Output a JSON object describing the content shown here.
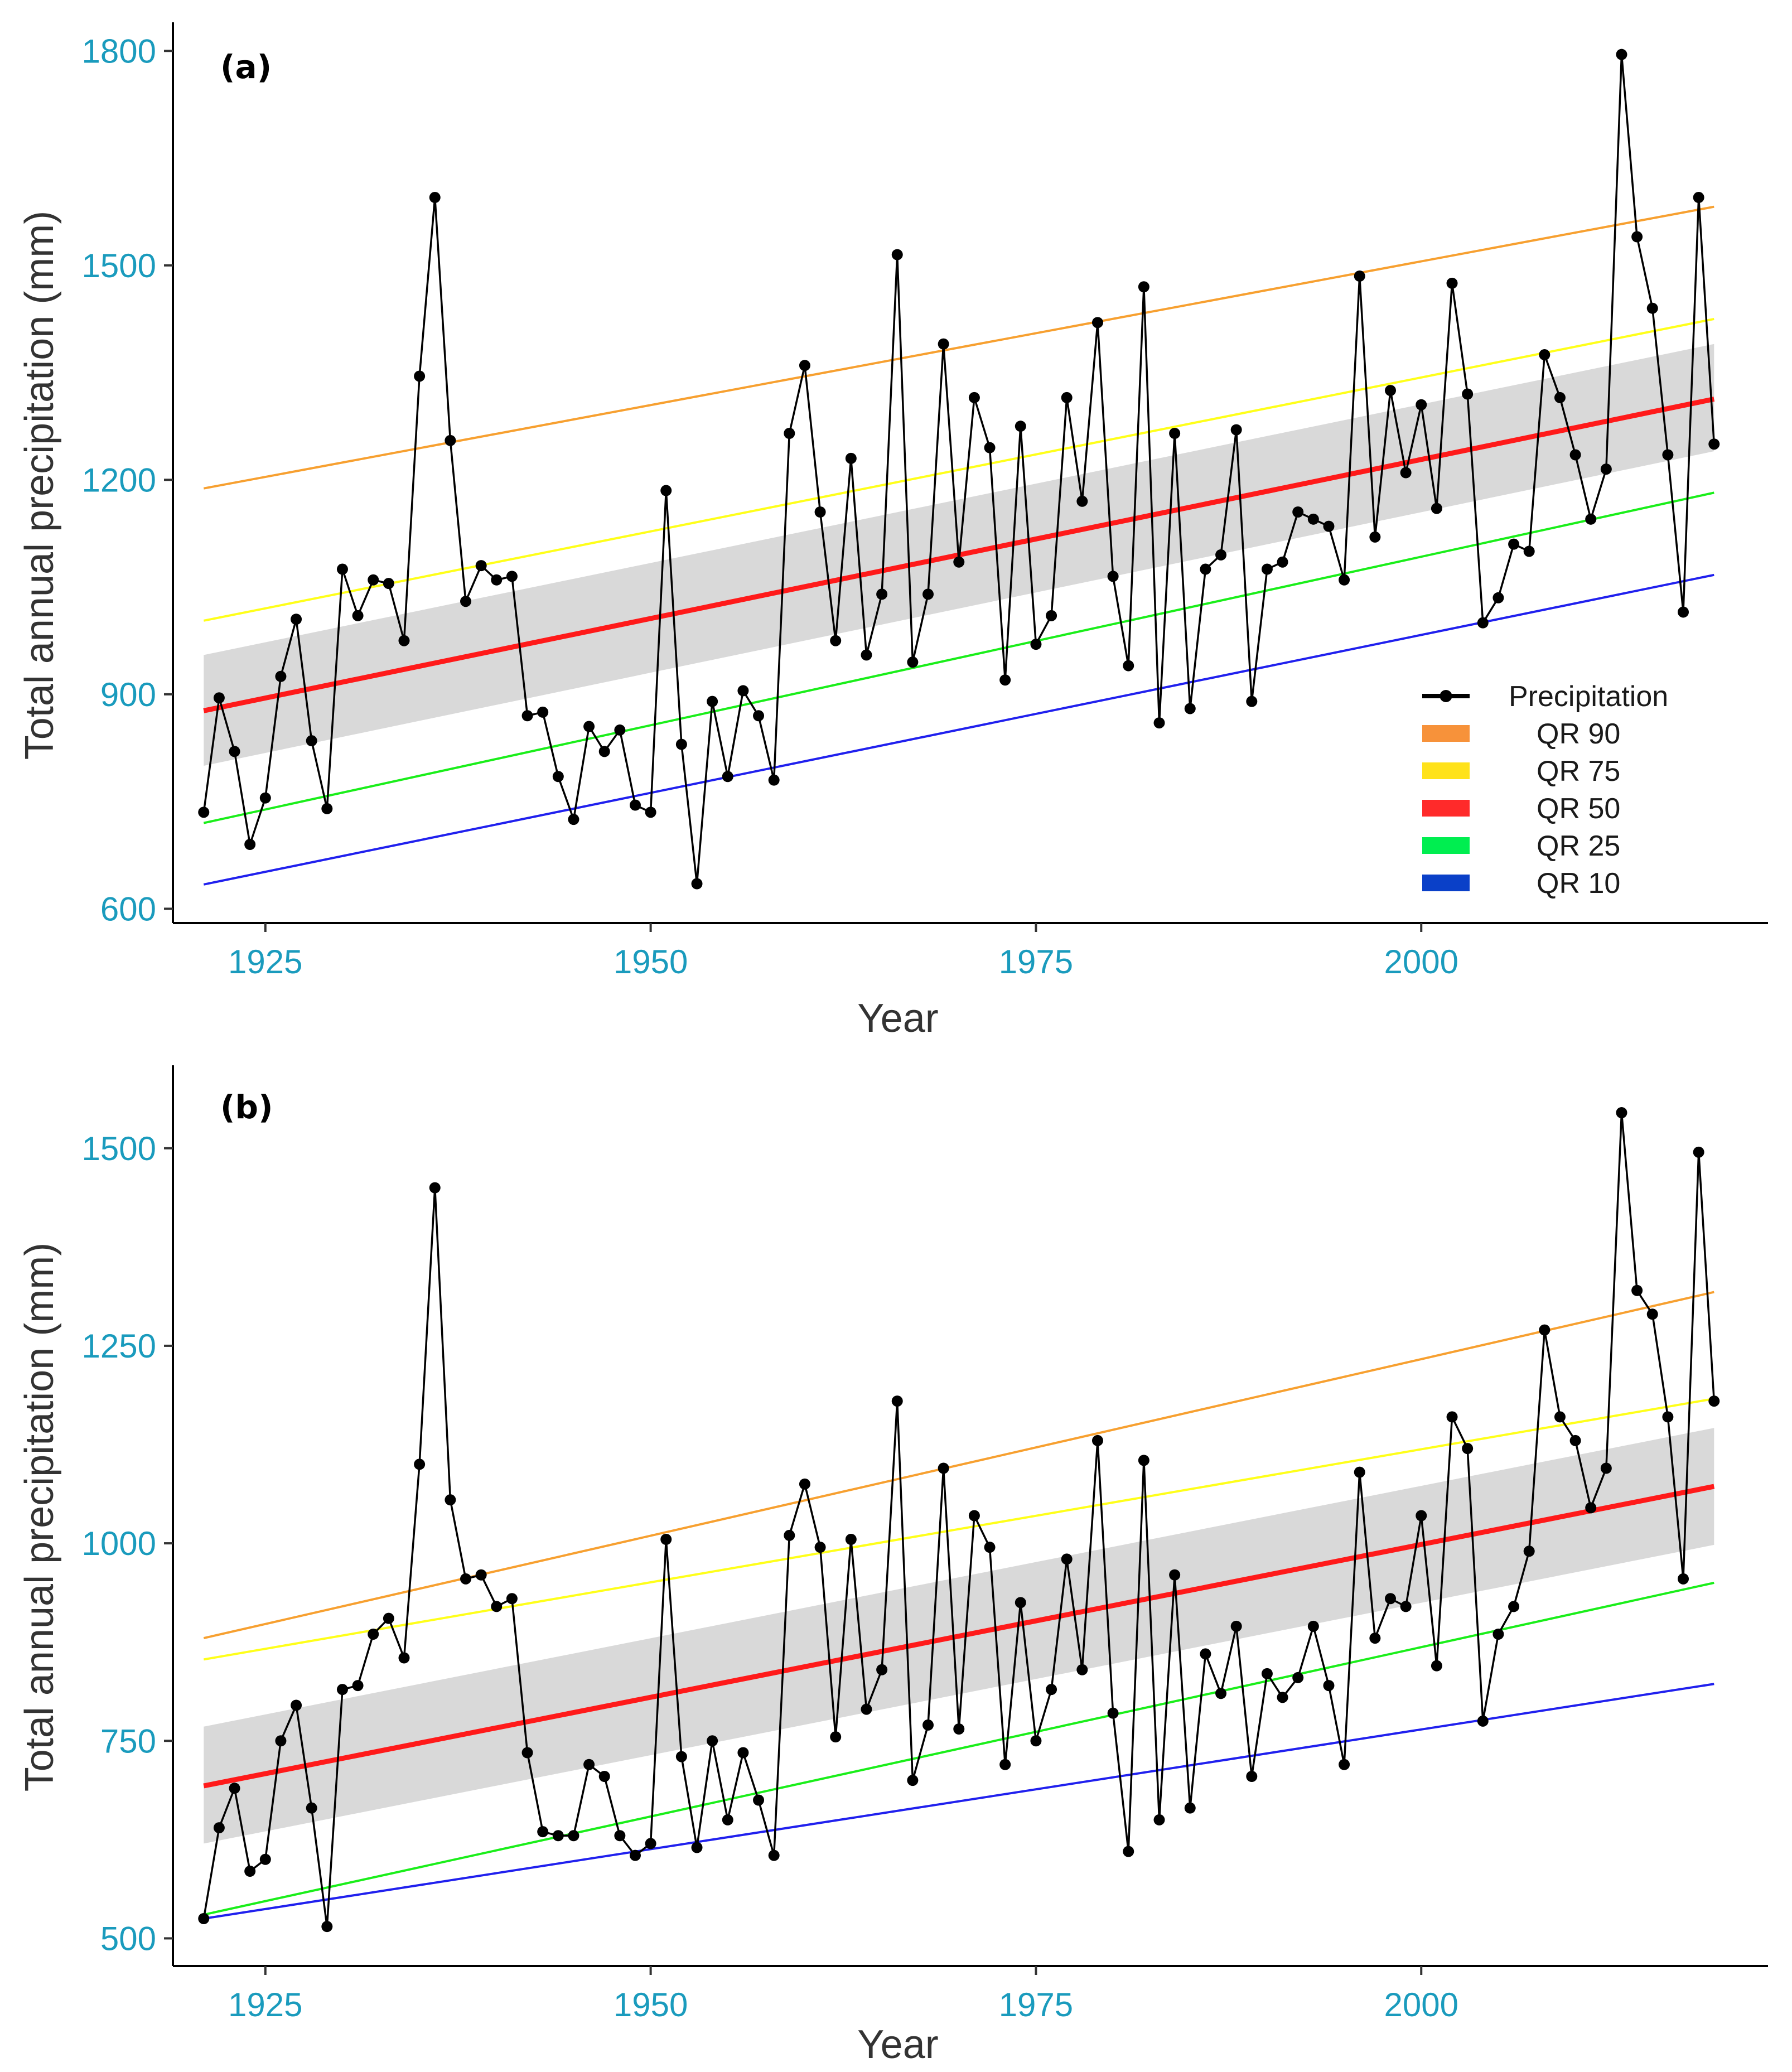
{
  "chart_data": [
    {
      "type": "line",
      "panel_label": "(a)",
      "xlabel": "Year",
      "ylabel": "Total annual precipitation (mm)",
      "xlim": [
        1919,
        2022.5
      ],
      "ylim": [
        580,
        1840
      ],
      "xticks": [
        "1925",
        "1950",
        "1975",
        "2000"
      ],
      "yticks": [
        "600",
        "900",
        "1200",
        "1500",
        "1800"
      ],
      "x": [
        1921,
        1922,
        1923,
        1924,
        1925,
        1926,
        1927,
        1928,
        1929,
        1930,
        1931,
        1932,
        1933,
        1934,
        1935,
        1936,
        1937,
        1938,
        1939,
        1940,
        1941,
        1942,
        1943,
        1944,
        1945,
        1946,
        1947,
        1948,
        1949,
        1950,
        1951,
        1952,
        1953,
        1954,
        1955,
        1956,
        1957,
        1958,
        1959,
        1960,
        1961,
        1962,
        1963,
        1964,
        1965,
        1966,
        1967,
        1968,
        1969,
        1970,
        1971,
        1972,
        1973,
        1974,
        1975,
        1976,
        1977,
        1978,
        1979,
        1980,
        1981,
        1982,
        1983,
        1984,
        1985,
        1986,
        1987,
        1988,
        1989,
        1990,
        1991,
        1992,
        1993,
        1994,
        1995,
        1996,
        1997,
        1998,
        1999,
        2000,
        2001,
        2002,
        2003,
        2004,
        2005,
        2006,
        2007,
        2008,
        2009,
        2010,
        2011,
        2012,
        2013,
        2014,
        2015,
        2016,
        2017,
        2018,
        2019
      ],
      "precipitation": [
        735,
        895,
        820,
        690,
        755,
        925,
        1005,
        835,
        740,
        1075,
        1010,
        1060,
        1055,
        975,
        1345,
        1595,
        1255,
        1030,
        1080,
        1060,
        1065,
        870,
        875,
        785,
        725,
        855,
        820,
        850,
        745,
        735,
        1185,
        830,
        635,
        890,
        785,
        905,
        870,
        780,
        1265,
        1360,
        1155,
        975,
        1230,
        955,
        1040,
        1515,
        945,
        1040,
        1390,
        1085,
        1315,
        1245,
        920,
        1275,
        970,
        1010,
        1315,
        1170,
        1420,
        1065,
        940,
        1470,
        860,
        1265,
        880,
        1075,
        1095,
        1270,
        890,
        1075,
        1085,
        1155,
        1145,
        1135,
        1060,
        1485,
        1120,
        1325,
        1210,
        1305,
        1160,
        1475,
        1320,
        1000,
        1035,
        1110,
        1100,
        1375,
        1315,
        1235,
        1145,
        1215,
        1795,
        1540,
        1440,
        1235,
        1015,
        1595,
        1250
      ],
      "qr_lines": [
        {
          "name": "QR 90",
          "color": "#f7a030",
          "start": [
            1921,
            1188
          ],
          "end": [
            2019,
            1582
          ]
        },
        {
          "name": "QR 75",
          "color": "#ffff1a",
          "start": [
            1921,
            1003
          ],
          "end": [
            2019,
            1425
          ]
        },
        {
          "name": "QR 50",
          "color": "#ff1a1a",
          "start": [
            1921,
            877
          ],
          "end": [
            2019,
            1313
          ]
        },
        {
          "name": "QR 25",
          "color": "#1aee1a",
          "start": [
            1921,
            720
          ],
          "end": [
            2019,
            1182
          ]
        },
        {
          "name": "QR 10",
          "color": "#2020ee",
          "start": [
            1921,
            634
          ],
          "end": [
            2019,
            1067
          ]
        }
      ],
      "confidence_band": {
        "start": [
          1921,
          800,
          955
        ],
        "end": [
          2019,
          1240,
          1390
        ],
        "color": "#d9d9d9"
      },
      "legend": [
        {
          "label": "Precipitation",
          "color": "#000000"
        },
        {
          "label": "QR 90",
          "color": "#f7923a"
        },
        {
          "label": "QR 75",
          "color": "#ffe21a"
        },
        {
          "label": "QR 50",
          "color": "#ff2a2a"
        },
        {
          "label": "QR 25",
          "color": "#00ee50"
        },
        {
          "label": "QR 10",
          "color": "#0a40c8"
        }
      ]
    },
    {
      "type": "line",
      "panel_label": "(b)",
      "xlabel": "Year",
      "ylabel": "Total annual precipitation (mm)",
      "xlim": [
        1919,
        2022.5
      ],
      "ylim": [
        465,
        1605
      ],
      "xticks": [
        "1925",
        "1950",
        "1975",
        "2000"
      ],
      "yticks": [
        "500",
        "750",
        "1000",
        "1250",
        "1500"
      ],
      "x": [
        1921,
        1922,
        1923,
        1924,
        1925,
        1926,
        1927,
        1928,
        1929,
        1930,
        1931,
        1932,
        1933,
        1934,
        1935,
        1936,
        1937,
        1938,
        1939,
        1940,
        1941,
        1942,
        1943,
        1944,
        1945,
        1946,
        1947,
        1948,
        1949,
        1950,
        1951,
        1952,
        1953,
        1954,
        1955,
        1956,
        1957,
        1958,
        1959,
        1960,
        1961,
        1962,
        1963,
        1964,
        1965,
        1966,
        1967,
        1968,
        1969,
        1970,
        1971,
        1972,
        1973,
        1974,
        1975,
        1976,
        1977,
        1978,
        1979,
        1980,
        1981,
        1982,
        1983,
        1984,
        1985,
        1986,
        1987,
        1988,
        1989,
        1990,
        1991,
        1992,
        1993,
        1994,
        1995,
        1996,
        1997,
        1998,
        1999,
        2000,
        2001,
        2002,
        2003,
        2004,
        2005,
        2006,
        2007,
        2008,
        2009,
        2010,
        2011,
        2012,
        2013,
        2014,
        2015,
        2016,
        2017,
        2018,
        2019
      ],
      "precipitation": [
        525,
        640,
        690,
        585,
        600,
        750,
        795,
        665,
        515,
        815,
        820,
        885,
        905,
        855,
        1100,
        1450,
        1055,
        955,
        960,
        920,
        930,
        735,
        635,
        630,
        630,
        720,
        705,
        630,
        605,
        620,
        1005,
        730,
        615,
        750,
        650,
        735,
        675,
        605,
        1010,
        1075,
        995,
        755,
        1005,
        790,
        840,
        1180,
        700,
        770,
        1095,
        765,
        1035,
        995,
        720,
        925,
        750,
        815,
        980,
        840,
        1130,
        785,
        610,
        1105,
        650,
        960,
        665,
        860,
        810,
        895,
        705,
        835,
        805,
        830,
        895,
        820,
        720,
        1090,
        880,
        930,
        920,
        1035,
        845,
        1160,
        1120,
        775,
        885,
        920,
        990,
        1270,
        1160,
        1130,
        1045,
        1095,
        1545,
        1320,
        1290,
        1160,
        955,
        1495,
        1180
      ],
      "qr_lines": [
        {
          "name": "QR 90",
          "color": "#f7a030",
          "start": [
            1921,
            880
          ],
          "end": [
            2019,
            1318
          ]
        },
        {
          "name": "QR 75",
          "color": "#ffff1a",
          "start": [
            1921,
            853
          ],
          "end": [
            2019,
            1183
          ]
        },
        {
          "name": "QR 50",
          "color": "#ff1a1a",
          "start": [
            1921,
            693
          ],
          "end": [
            2019,
            1072
          ]
        },
        {
          "name": "QR 25",
          "color": "#1aee1a",
          "start": [
            1921,
            530
          ],
          "end": [
            2019,
            950
          ]
        },
        {
          "name": "QR 10",
          "color": "#2020ee",
          "start": [
            1921,
            525
          ],
          "end": [
            2019,
            822
          ]
        }
      ],
      "confidence_band": {
        "start": [
          1921,
          620,
          768
        ],
        "end": [
          2019,
          998,
          1146
        ],
        "color": "#d9d9d9"
      }
    }
  ]
}
